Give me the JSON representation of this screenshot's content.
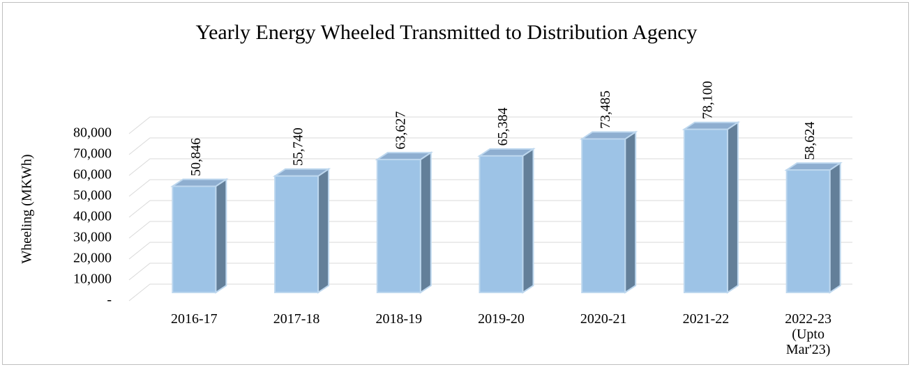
{
  "chart_data": {
    "type": "bar3d",
    "title": "Yearly  Energy Wheeled Transmitted to Distribution Agency",
    "y_label": "Wheeling (MKWh)",
    "categories": [
      "2016-17",
      "2017-18",
      "2018-19",
      "2019-20",
      "2020-21",
      "2021-22",
      "2022-23 (Upto Mar'23)"
    ],
    "values": [
      50846,
      55740,
      63627,
      65384,
      73485,
      78100,
      58624
    ],
    "value_labels": [
      "50,846",
      "55,740",
      "63,627",
      "65,384",
      "73,485",
      "78,100",
      "58,624"
    ],
    "color": "#9dc3e6",
    "ylim": [
      0,
      80000
    ],
    "yticks": [
      {
        "value": 0,
        "label": "-"
      },
      {
        "value": 10000,
        "label": "10,000"
      },
      {
        "value": 20000,
        "label": "20,000"
      },
      {
        "value": 30000,
        "label": "30,000"
      },
      {
        "value": 40000,
        "label": "40,000"
      },
      {
        "value": 50000,
        "label": "50,000"
      },
      {
        "value": 60000,
        "label": "60,000"
      },
      {
        "value": 70000,
        "label": "70,000"
      },
      {
        "value": 80000,
        "label": "80,000"
      }
    ],
    "grid": true
  }
}
